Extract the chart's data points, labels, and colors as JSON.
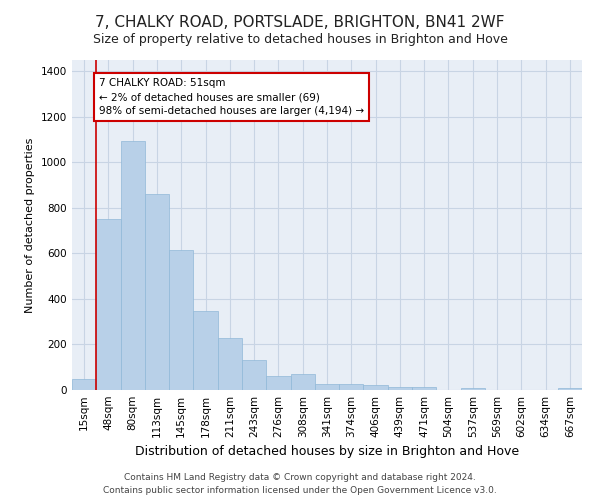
{
  "title_line1": "7, CHALKY ROAD, PORTSLADE, BRIGHTON, BN41 2WF",
  "title_line2": "Size of property relative to detached houses in Brighton and Hove",
  "xlabel": "Distribution of detached houses by size in Brighton and Hove",
  "ylabel": "Number of detached properties",
  "categories": [
    "15sqm",
    "48sqm",
    "80sqm",
    "113sqm",
    "145sqm",
    "178sqm",
    "211sqm",
    "243sqm",
    "276sqm",
    "308sqm",
    "341sqm",
    "374sqm",
    "406sqm",
    "439sqm",
    "471sqm",
    "504sqm",
    "537sqm",
    "569sqm",
    "602sqm",
    "634sqm",
    "667sqm"
  ],
  "values": [
    50,
    750,
    1095,
    862,
    615,
    345,
    228,
    132,
    62,
    70,
    27,
    27,
    20,
    14,
    14,
    0,
    10,
    0,
    0,
    0,
    10
  ],
  "bar_color": "#b8d0e8",
  "bar_edge_color": "#90b8d8",
  "highlight_color": "#cc0000",
  "annotation_line1": "7 CHALKY ROAD: 51sqm",
  "annotation_line2": "← 2% of detached houses are smaller (69)",
  "annotation_line3": "98% of semi-detached houses are larger (4,194) →",
  "annotation_box_color": "#ffffff",
  "annotation_box_edge": "#cc0000",
  "ylim": [
    0,
    1450
  ],
  "yticks": [
    0,
    200,
    400,
    600,
    800,
    1000,
    1200,
    1400
  ],
  "grid_color": "#c8d4e4",
  "bg_color": "#e8eef6",
  "footer_line1": "Contains HM Land Registry data © Crown copyright and database right 2024.",
  "footer_line2": "Contains public sector information licensed under the Open Government Licence v3.0.",
  "title_fontsize": 11,
  "subtitle_fontsize": 9,
  "ylabel_fontsize": 8,
  "xlabel_fontsize": 9,
  "tick_fontsize": 7.5,
  "footer_fontsize": 6.5
}
